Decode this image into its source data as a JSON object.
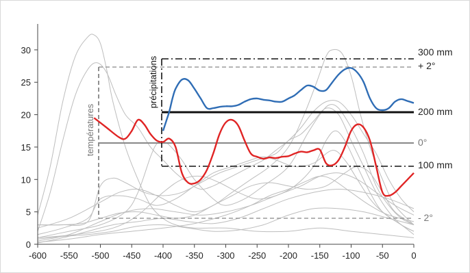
{
  "chart_data": {
    "type": "line",
    "x_ticks": [
      "-600",
      "-550",
      "-500",
      "-450",
      "-400",
      "-350",
      "-300",
      "-250",
      "-200",
      "-150",
      "-100",
      "-50",
      "0"
    ],
    "y_ticks": [
      "0",
      "5",
      "10",
      "15",
      "20",
      "25",
      "30"
    ],
    "xlim": [
      -600,
      0
    ],
    "ylim": [
      0,
      34
    ],
    "axis_labels": {
      "temperature": "températures",
      "precipitation": "précipitations"
    },
    "precip_scale": [
      {
        "label": "300 mm",
        "y": 29.5
      },
      {
        "label": "200 mm",
        "y": 21
      },
      {
        "label": "100 mm",
        "y": 12.5
      }
    ],
    "temp_scale": [
      {
        "label": "+ 2°",
        "y": 28
      },
      {
        "label": "0°",
        "y": 16
      },
      {
        "label": "- 2°",
        "y": 4
      }
    ],
    "colors": {
      "temperature": "#e02424",
      "precipitation": "#2f6db5",
      "background_curves": "#bdbdbd"
    },
    "series": [
      {
        "color": "red",
        "points": [
          [
            -510,
            19.5
          ],
          [
            -490,
            18
          ],
          [
            -470,
            16.5
          ],
          [
            -460,
            16.3
          ],
          [
            -450,
            17.5
          ],
          [
            -440,
            19.2
          ],
          [
            -430,
            18.5
          ],
          [
            -420,
            17
          ],
          [
            -410,
            16
          ],
          [
            -400,
            15.8
          ],
          [
            -390,
            16.3
          ],
          [
            -380,
            15
          ],
          [
            -370,
            11
          ],
          [
            -360,
            9.5
          ],
          [
            -350,
            9.4
          ],
          [
            -340,
            10
          ],
          [
            -330,
            11.5
          ],
          [
            -320,
            14
          ],
          [
            -310,
            17
          ],
          [
            -300,
            18.8
          ],
          [
            -290,
            19.2
          ],
          [
            -280,
            18.3
          ],
          [
            -270,
            16
          ],
          [
            -260,
            14
          ],
          [
            -250,
            13.5
          ],
          [
            -240,
            13.2
          ],
          [
            -230,
            13.4
          ],
          [
            -220,
            13.3
          ],
          [
            -210,
            13.5
          ],
          [
            -200,
            13.6
          ],
          [
            -190,
            14
          ],
          [
            -180,
            14.3
          ],
          [
            -170,
            14.2
          ],
          [
            -160,
            14.5
          ],
          [
            -150,
            14.6
          ],
          [
            -140,
            12.5
          ],
          [
            -130,
            12.2
          ],
          [
            -120,
            13
          ],
          [
            -110,
            15
          ],
          [
            -100,
            17.5
          ],
          [
            -90,
            18.5
          ],
          [
            -80,
            18
          ],
          [
            -70,
            16
          ],
          [
            -60,
            12
          ],
          [
            -50,
            8
          ],
          [
            -40,
            7.5
          ],
          [
            -30,
            8
          ],
          [
            -20,
            9
          ],
          [
            -10,
            10
          ],
          [
            0,
            11
          ]
        ]
      },
      {
        "color": "blue",
        "points": [
          [
            -400,
            17.5
          ],
          [
            -395,
            19
          ],
          [
            -390,
            20.5
          ],
          [
            -385,
            22.5
          ],
          [
            -380,
            24
          ],
          [
            -370,
            25.4
          ],
          [
            -360,
            25.3
          ],
          [
            -350,
            24
          ],
          [
            -340,
            22.5
          ],
          [
            -330,
            21
          ],
          [
            -320,
            21
          ],
          [
            -310,
            21.2
          ],
          [
            -300,
            21.3
          ],
          [
            -290,
            21.3
          ],
          [
            -280,
            21.5
          ],
          [
            -270,
            22
          ],
          [
            -260,
            22.4
          ],
          [
            -250,
            22.5
          ],
          [
            -240,
            22.3
          ],
          [
            -230,
            22.2
          ],
          [
            -220,
            22
          ],
          [
            -210,
            22
          ],
          [
            -200,
            22.5
          ],
          [
            -190,
            23
          ],
          [
            -180,
            23.8
          ],
          [
            -170,
            24.5
          ],
          [
            -160,
            24.3
          ],
          [
            -150,
            23.7
          ],
          [
            -140,
            23.8
          ],
          [
            -130,
            25
          ],
          [
            -120,
            26.2
          ],
          [
            -110,
            27
          ],
          [
            -100,
            27.2
          ],
          [
            -90,
            26.5
          ],
          [
            -80,
            25
          ],
          [
            -70,
            22.5
          ],
          [
            -60,
            21
          ],
          [
            -50,
            20.7
          ],
          [
            -40,
            21
          ],
          [
            -30,
            22
          ],
          [
            -20,
            22.4
          ],
          [
            -10,
            22.1
          ],
          [
            0,
            21.8
          ]
        ]
      }
    ],
    "background_curves": [
      [
        [
          -600,
          4.5
        ],
        [
          -580,
          12
        ],
        [
          -560,
          22
        ],
        [
          -540,
          29
        ],
        [
          -520,
          32
        ],
        [
          -510,
          32.3
        ],
        [
          -500,
          31
        ],
        [
          -490,
          27
        ],
        [
          -480,
          22
        ],
        [
          -460,
          15
        ],
        [
          -440,
          10
        ],
        [
          -420,
          6
        ],
        [
          -400,
          4
        ],
        [
          -380,
          3
        ],
        [
          -350,
          2.5
        ],
        [
          -300,
          2.5
        ],
        [
          -250,
          2
        ],
        [
          -200,
          2
        ],
        [
          -150,
          2.5
        ],
        [
          -100,
          2
        ],
        [
          -50,
          1.5
        ],
        [
          0,
          1
        ]
      ],
      [
        [
          -600,
          2
        ],
        [
          -580,
          8
        ],
        [
          -560,
          16
        ],
        [
          -540,
          23
        ],
        [
          -520,
          27
        ],
        [
          -505,
          28
        ],
        [
          -490,
          26.5
        ],
        [
          -475,
          23
        ],
        [
          -460,
          20
        ],
        [
          -440,
          18
        ],
        [
          -420,
          15
        ],
        [
          -400,
          13
        ],
        [
          -380,
          11
        ],
        [
          -360,
          9.5
        ],
        [
          -340,
          8.5
        ],
        [
          -320,
          9
        ],
        [
          -300,
          10
        ],
        [
          -280,
          11
        ],
        [
          -260,
          12
        ],
        [
          -240,
          13
        ],
        [
          -220,
          14.5
        ],
        [
          -200,
          16
        ],
        [
          -180,
          18
        ],
        [
          -160,
          20.5
        ],
        [
          -140,
          22
        ],
        [
          -120,
          22
        ],
        [
          -100,
          20
        ],
        [
          -80,
          17
        ],
        [
          -60,
          14
        ],
        [
          -40,
          10
        ],
        [
          -20,
          7
        ],
        [
          0,
          5
        ]
      ],
      [
        [
          -600,
          1
        ],
        [
          -550,
          2
        ],
        [
          -500,
          3
        ],
        [
          -460,
          5
        ],
        [
          -440,
          8
        ],
        [
          -420,
          13.5
        ],
        [
          -410,
          15.5
        ],
        [
          -400,
          15.8
        ],
        [
          -390,
          15.3
        ],
        [
          -370,
          13
        ],
        [
          -350,
          10
        ],
        [
          -320,
          7
        ],
        [
          -300,
          6
        ],
        [
          -270,
          7
        ],
        [
          -240,
          9
        ],
        [
          -200,
          12
        ],
        [
          -170,
          17
        ],
        [
          -150,
          20
        ],
        [
          -135,
          21.5
        ],
        [
          -120,
          21
        ],
        [
          -100,
          18
        ],
        [
          -80,
          14
        ],
        [
          -60,
          9
        ],
        [
          -40,
          6
        ],
        [
          -20,
          4
        ],
        [
          0,
          3
        ]
      ],
      [
        [
          -600,
          2.5
        ],
        [
          -550,
          4
        ],
        [
          -500,
          6.5
        ],
        [
          -470,
          8
        ],
        [
          -440,
          8.5
        ],
        [
          -410,
          7.5
        ],
        [
          -380,
          6
        ],
        [
          -350,
          5
        ],
        [
          -320,
          6
        ],
        [
          -290,
          8
        ],
        [
          -260,
          10
        ],
        [
          -230,
          12
        ],
        [
          -200,
          15
        ],
        [
          -175,
          20
        ],
        [
          -155,
          25
        ],
        [
          -140,
          29
        ],
        [
          -130,
          30
        ],
        [
          -115,
          29.5
        ],
        [
          -100,
          26
        ],
        [
          -85,
          20
        ],
        [
          -70,
          15
        ],
        [
          -50,
          10
        ],
        [
          -30,
          6
        ],
        [
          0,
          3
        ]
      ],
      [
        [
          -600,
          3
        ],
        [
          -560,
          3
        ],
        [
          -520,
          3.5
        ],
        [
          -500,
          9
        ],
        [
          -480,
          10.2
        ],
        [
          -460,
          9.5
        ],
        [
          -430,
          8
        ],
        [
          -400,
          7.5
        ],
        [
          -370,
          8
        ],
        [
          -340,
          9.5
        ],
        [
          -310,
          11
        ],
        [
          -280,
          12
        ],
        [
          -250,
          13
        ],
        [
          -220,
          14
        ],
        [
          -200,
          16
        ],
        [
          -180,
          17
        ],
        [
          -160,
          19
        ],
        [
          -140,
          21
        ],
        [
          -120,
          20
        ],
        [
          -100,
          16
        ],
        [
          -80,
          12
        ],
        [
          -60,
          8
        ],
        [
          -40,
          5
        ],
        [
          -20,
          3
        ],
        [
          0,
          2
        ]
      ],
      [
        [
          -600,
          1.5
        ],
        [
          -560,
          2.5
        ],
        [
          -520,
          4
        ],
        [
          -500,
          7
        ],
        [
          -470,
          7.5
        ],
        [
          -440,
          7
        ],
        [
          -410,
          6
        ],
        [
          -380,
          7
        ],
        [
          -350,
          9
        ],
        [
          -320,
          11
        ],
        [
          -290,
          12
        ],
        [
          -260,
          13
        ],
        [
          -240,
          13.5
        ],
        [
          -220,
          13
        ],
        [
          -190,
          12
        ],
        [
          -160,
          12.5
        ],
        [
          -130,
          14.5
        ],
        [
          -110,
          13
        ],
        [
          -90,
          10
        ],
        [
          -70,
          7
        ],
        [
          -50,
          5
        ],
        [
          -20,
          3
        ],
        [
          0,
          2
        ]
      ],
      [
        [
          -600,
          0.5
        ],
        [
          -550,
          1.5
        ],
        [
          -500,
          3.5
        ],
        [
          -460,
          5
        ],
        [
          -420,
          5.5
        ],
        [
          -380,
          5
        ],
        [
          -340,
          4.5
        ],
        [
          -300,
          5
        ],
        [
          -260,
          6
        ],
        [
          -220,
          7.5
        ],
        [
          -180,
          9
        ],
        [
          -150,
          10.5
        ],
        [
          -120,
          11
        ],
        [
          -90,
          10
        ],
        [
          -60,
          8
        ],
        [
          -30,
          6
        ],
        [
          0,
          4.5
        ]
      ],
      [
        [
          -600,
          0.2
        ],
        [
          -560,
          1
        ],
        [
          -520,
          2
        ],
        [
          -480,
          3
        ],
        [
          -440,
          3.5
        ],
        [
          -400,
          4
        ],
        [
          -360,
          3.5
        ],
        [
          -320,
          3.2
        ],
        [
          -280,
          4
        ],
        [
          -240,
          5.5
        ],
        [
          -200,
          7
        ],
        [
          -160,
          8
        ],
        [
          -120,
          8.5
        ],
        [
          -80,
          8
        ],
        [
          -40,
          7
        ],
        [
          0,
          5.5
        ]
      ],
      [
        [
          -600,
          1
        ],
        [
          -540,
          1.5
        ],
        [
          -480,
          2.5
        ],
        [
          -440,
          4.5
        ],
        [
          -400,
          8
        ],
        [
          -370,
          10
        ],
        [
          -340,
          10.5
        ],
        [
          -310,
          9.5
        ],
        [
          -280,
          8
        ],
        [
          -250,
          7
        ],
        [
          -220,
          7.5
        ],
        [
          -190,
          9
        ],
        [
          -160,
          12
        ],
        [
          -140,
          16
        ],
        [
          -125,
          17.5
        ],
        [
          -110,
          16
        ],
        [
          -90,
          12
        ],
        [
          -70,
          8
        ],
        [
          -50,
          5
        ],
        [
          -20,
          3
        ],
        [
          0,
          1.5
        ]
      ],
      [
        [
          -600,
          0.3
        ],
        [
          -550,
          0.8
        ],
        [
          -500,
          1.5
        ],
        [
          -450,
          2
        ],
        [
          -400,
          2.5
        ],
        [
          -350,
          3.2
        ],
        [
          -300,
          4.5
        ],
        [
          -260,
          6
        ],
        [
          -230,
          7.5
        ],
        [
          -200,
          8.5
        ],
        [
          -170,
          9.8
        ],
        [
          -150,
          10.5
        ],
        [
          -130,
          10
        ],
        [
          -100,
          8
        ],
        [
          -70,
          6
        ],
        [
          -40,
          4.5
        ],
        [
          0,
          3.5
        ]
      ],
      [
        [
          -600,
          3
        ],
        [
          -570,
          3
        ],
        [
          -530,
          3.2
        ],
        [
          -500,
          4
        ],
        [
          -470,
          4.8
        ],
        [
          -440,
          5
        ],
        [
          -410,
          4.5
        ],
        [
          -380,
          4
        ],
        [
          -350,
          4.5
        ],
        [
          -320,
          6
        ],
        [
          -290,
          7.5
        ],
        [
          -260,
          9
        ],
        [
          -230,
          9.5
        ],
        [
          -200,
          9
        ],
        [
          -170,
          8.5
        ],
        [
          -140,
          9
        ],
        [
          -110,
          11
        ],
        [
          -90,
          12
        ],
        [
          -70,
          11
        ],
        [
          -50,
          8
        ],
        [
          -30,
          5
        ],
        [
          0,
          3
        ]
      ],
      [
        [
          -600,
          0.8
        ],
        [
          -560,
          1.2
        ],
        [
          -520,
          1.5
        ],
        [
          -480,
          2
        ],
        [
          -440,
          2.8
        ],
        [
          -400,
          3
        ],
        [
          -360,
          2.5
        ],
        [
          -320,
          2
        ],
        [
          -280,
          2.2
        ],
        [
          -240,
          3
        ],
        [
          -200,
          4.5
        ],
        [
          -160,
          5.5
        ],
        [
          -120,
          5.5
        ],
        [
          -80,
          5
        ],
        [
          -40,
          4
        ],
        [
          0,
          3
        ]
      ]
    ]
  }
}
